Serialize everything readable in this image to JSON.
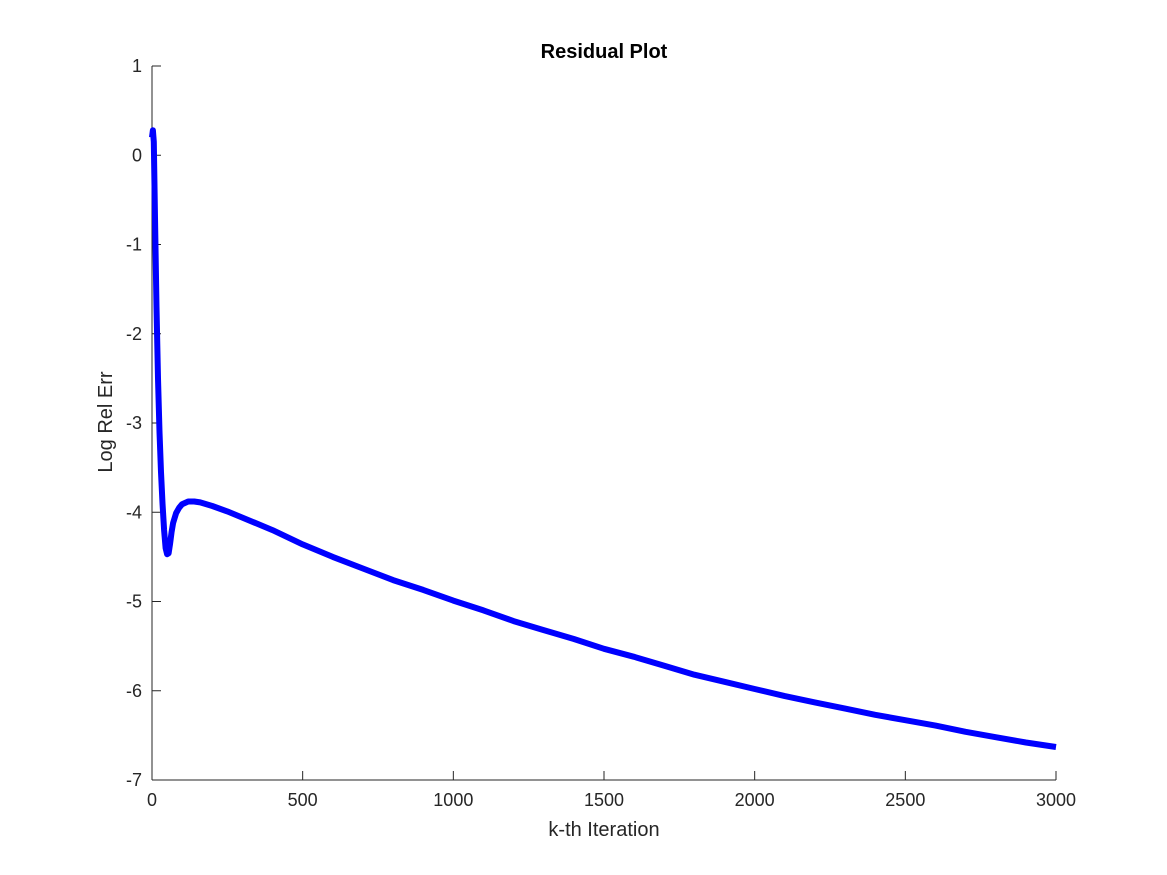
{
  "chart_data": {
    "type": "line",
    "title": "Residual Plot",
    "xlabel": "k-th Iteration",
    "ylabel": "Log Rel Err",
    "xlim": [
      0,
      3000
    ],
    "ylim": [
      -7,
      1
    ],
    "xticks": [
      0,
      500,
      1000,
      1500,
      2000,
      2500,
      3000
    ],
    "yticks": [
      -7,
      -6,
      -5,
      -4,
      -3,
      -2,
      -1,
      0,
      1
    ],
    "grid": false,
    "series": [
      {
        "color": "#0000ff",
        "x": [
          0,
          3,
          6,
          10,
          15,
          20,
          25,
          30,
          35,
          40,
          45,
          50,
          55,
          60,
          65,
          70,
          80,
          90,
          100,
          120,
          140,
          160,
          200,
          250,
          300,
          400,
          500,
          600,
          700,
          800,
          900,
          1000,
          1100,
          1200,
          1300,
          1400,
          1500,
          1600,
          1700,
          1800,
          1900,
          2000,
          2100,
          2200,
          2300,
          2400,
          2500,
          2600,
          2700,
          2800,
          2900,
          3000
        ],
        "y": [
          0.2,
          0.28,
          0.15,
          -0.7,
          -1.7,
          -2.5,
          -3.1,
          -3.55,
          -3.9,
          -4.2,
          -4.4,
          -4.47,
          -4.46,
          -4.35,
          -4.22,
          -4.12,
          -4.01,
          -3.95,
          -3.91,
          -3.88,
          -3.88,
          -3.89,
          -3.93,
          -3.99,
          -4.06,
          -4.2,
          -4.36,
          -4.5,
          -4.63,
          -4.76,
          -4.87,
          -4.99,
          -5.1,
          -5.22,
          -5.32,
          -5.42,
          -5.53,
          -5.62,
          -5.72,
          -5.82,
          -5.9,
          -5.98,
          -6.06,
          -6.13,
          -6.2,
          -6.27,
          -6.33,
          -6.39,
          -6.46,
          -6.52,
          -6.58,
          -6.63
        ]
      }
    ]
  }
}
